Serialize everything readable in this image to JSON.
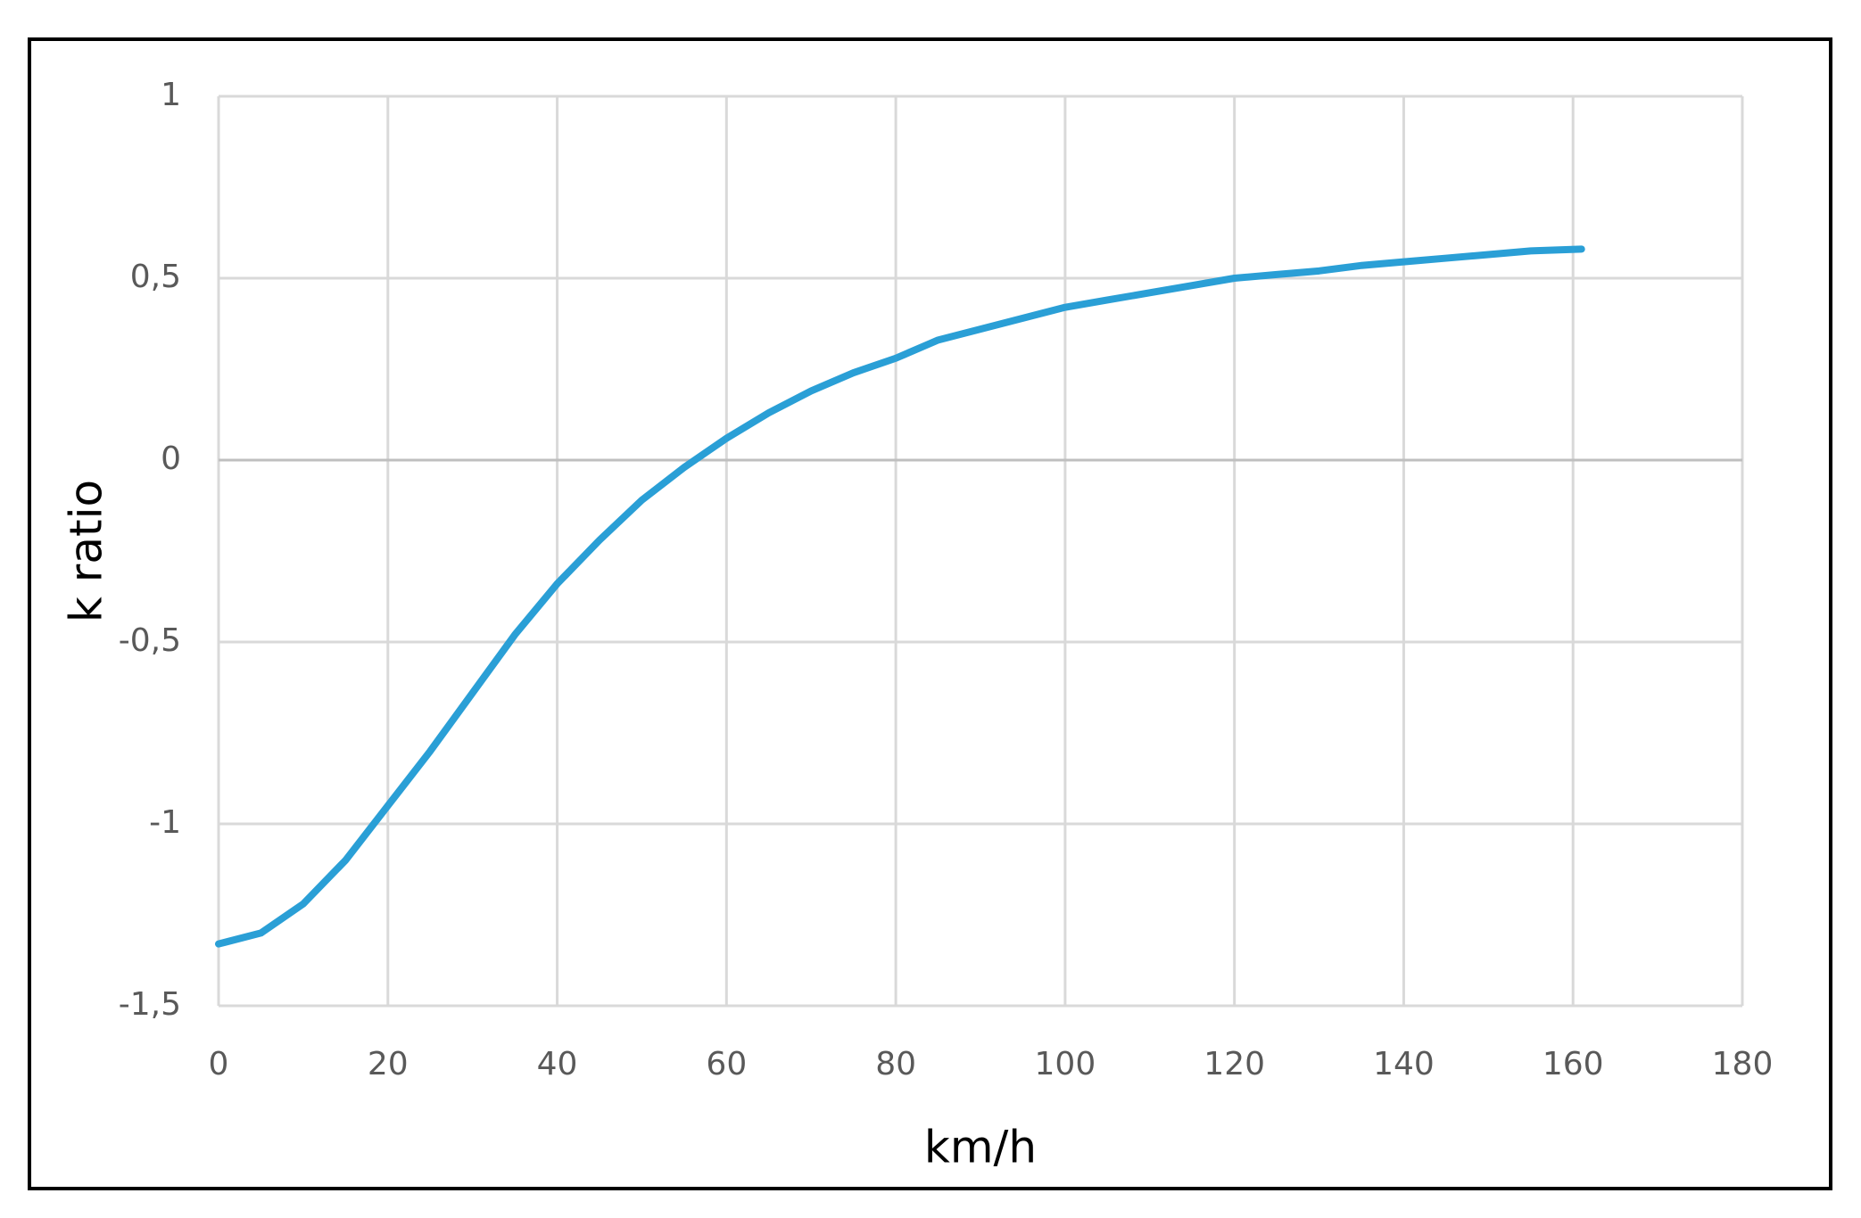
{
  "chart_data": {
    "type": "line",
    "x_label": "km/h",
    "y_label": "k ratio",
    "x": [
      0,
      5,
      10,
      15,
      20,
      25,
      30,
      35,
      40,
      45,
      50,
      55,
      60,
      65,
      70,
      75,
      80,
      85,
      90,
      95,
      100,
      105,
      110,
      115,
      120,
      125,
      130,
      135,
      140,
      145,
      150,
      155,
      161
    ],
    "series": [
      {
        "color": "#2a9fd6",
        "values": [
          -1.33,
          -1.3,
          -1.22,
          -1.1,
          -0.95,
          -0.8,
          -0.64,
          -0.48,
          -0.34,
          -0.22,
          -0.11,
          -0.02,
          0.06,
          0.13,
          0.19,
          0.24,
          0.28,
          0.33,
          0.36,
          0.39,
          0.42,
          0.44,
          0.46,
          0.48,
          0.5,
          0.51,
          0.52,
          0.535,
          0.545,
          0.555,
          0.565,
          0.575,
          0.58
        ]
      }
    ],
    "xlim": [
      0,
      180
    ],
    "xticks": [
      0,
      20,
      40,
      60,
      80,
      100,
      120,
      140,
      160,
      180
    ],
    "ylim": [
      -1.5,
      1
    ],
    "yticks": [
      {
        "value": -1.5,
        "label": "-1,5"
      },
      -1,
      {
        "value": -0.5,
        "label": "-0,5"
      },
      0,
      {
        "value": 0.5,
        "label": "0,5"
      },
      1
    ],
    "grid": true
  }
}
